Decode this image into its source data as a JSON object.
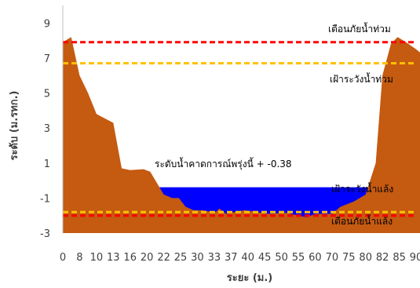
{
  "chart_data": {
    "type": "area",
    "xlabel": "ระยะ (ม.)",
    "ylabel": "ระดับ (ม.รทก.)",
    "ylim": [
      -3,
      10
    ],
    "y_ticks": [
      9,
      7,
      5,
      3,
      1,
      -1,
      -3
    ],
    "x_ticks": [
      "0",
      "8",
      "10",
      "13",
      "16",
      "20",
      "22",
      "25",
      "30",
      "33",
      "37",
      "40",
      "45",
      "50",
      "55",
      "60",
      "70",
      "75",
      "80",
      "82",
      "85",
      "90"
    ],
    "grid": false,
    "legend": "none",
    "colors": {
      "ground": "#c55a11",
      "water": "#0000ff",
      "flood_warning": "#ff0000",
      "flood_watch": "#ffc000",
      "drought_watch": "#ffc000",
      "drought_warning": "#ff0000"
    },
    "series": [
      {
        "kind": "ground",
        "x": [
          0.0,
          0.5,
          1.0,
          1.5,
          2.0,
          3.0,
          3.5,
          4.0,
          4.8,
          5.2,
          6.0,
          6.5,
          6.9,
          7.3,
          7.8,
          8.3,
          8.6,
          9.1,
          9.3,
          9.7,
          10.2,
          10.8,
          11.2,
          11.5,
          12.2,
          13.3,
          14.0,
          14.5,
          15.0,
          16.0,
          16.5,
          17.3,
          18.0,
          18.6,
          19.0,
          19.5,
          19.9,
          20.4,
          21.0,
          21.4
        ],
        "y": [
          7.9,
          8.2,
          6.0,
          5.0,
          3.8,
          3.3,
          0.7,
          0.6,
          0.65,
          0.5,
          -0.8,
          -1.0,
          -1.0,
          -1.5,
          -1.7,
          -1.7,
          -1.75,
          -1.8,
          -1.6,
          -1.9,
          -1.8,
          -1.7,
          -1.75,
          -1.8,
          -1.9,
          -1.85,
          -2.0,
          -2.1,
          -1.9,
          -1.9,
          -1.5,
          -1.2,
          -0.8,
          1.0,
          6.0,
          7.8,
          8.2,
          7.9,
          7.5,
          7.2
        ]
      }
    ],
    "water_level": -0.38,
    "reference_lines": [
      {
        "name": "เตือนภัยน้ำท่วม",
        "y": 7.9,
        "color": "#ff0000"
      },
      {
        "name": "เฝ้าระวังน้ำท่วม",
        "y": 6.7,
        "color": "#ffc000"
      },
      {
        "name": "เฝ้าระวังน้ำแล้ง",
        "y": -1.8,
        "color": "#ffc000"
      },
      {
        "name": "เตือนภัยน้ำแล้ง",
        "y": -2.0,
        "color": "#ff0000"
      }
    ],
    "annotations": {
      "flood_warning": "เตือนภัยน้ำท่วม",
      "flood_watch": "เฝ้าระวังน้ำท่วม",
      "forecast": "ระดับน้ำคาดการณ์พรุ่งนี้ +  -0.38",
      "drought_watch": "เฝ้าระวังน้ำแล้ง",
      "drought_warning": "เตือนภัยน้ำแล้ง"
    }
  }
}
